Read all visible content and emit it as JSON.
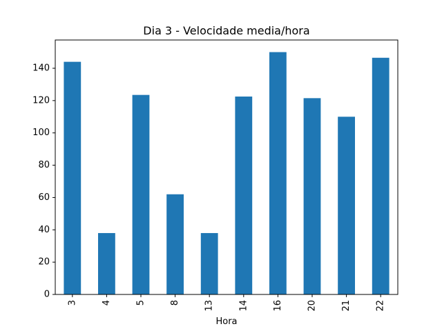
{
  "chart_data": {
    "type": "bar",
    "title": "Dia 3 - Velocidade media/hora",
    "xlabel": "Hora",
    "ylabel": "",
    "categories": [
      "3",
      "4",
      "5",
      "8",
      "13",
      "14",
      "16",
      "20",
      "21",
      "22"
    ],
    "values": [
      144,
      38,
      123.5,
      62,
      38,
      122.5,
      150,
      121.5,
      110,
      146.5
    ],
    "ylim": [
      0,
      157.5
    ],
    "yticks": [
      0,
      20,
      40,
      60,
      80,
      100,
      120,
      140
    ],
    "bar_color": "#1f77b4",
    "grid": false,
    "legend": "none"
  }
}
